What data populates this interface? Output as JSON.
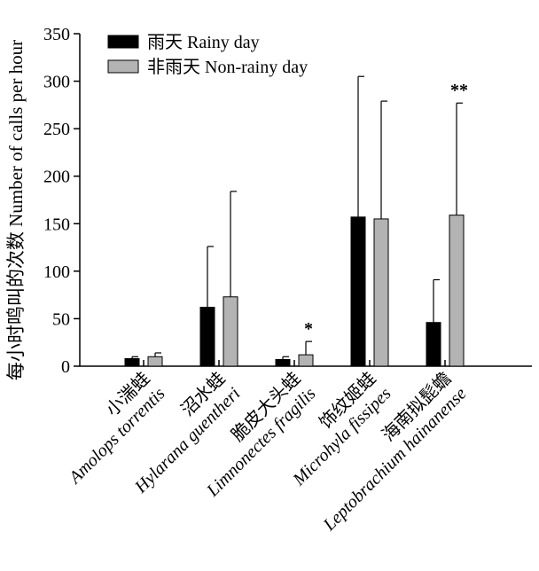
{
  "chart_data": {
    "type": "bar",
    "ylabel": "每小时鸣叫的次数 Number of calls per hour",
    "ylim": [
      0,
      350
    ],
    "yticks": [
      0,
      50,
      100,
      150,
      200,
      250,
      300,
      350
    ],
    "categories": [
      {
        "cn": "小湍蛙",
        "latin": "Amolops torrentis"
      },
      {
        "cn": "沼水蛙",
        "latin": "Hylarana guentheri"
      },
      {
        "cn": "脆皮大头蛙",
        "latin": "Limnonectes fragilis"
      },
      {
        "cn": "饰纹姬蛙",
        "latin": "Microhyla fissipes"
      },
      {
        "cn": "海南拟髭蟾",
        "latin": "Leptobrachium hainanense"
      }
    ],
    "series": [
      {
        "name": "雨天 Rainy day",
        "color": "#000000",
        "values": [
          8,
          62,
          7,
          157,
          46
        ],
        "errors": [
          2,
          64,
          3,
          148,
          45
        ]
      },
      {
        "name": "非雨天 Non-rainy day",
        "color": "#b3b3b3",
        "values": [
          10,
          73,
          12,
          155,
          159
        ],
        "errors": [
          4,
          111,
          14,
          124,
          118
        ]
      }
    ],
    "significance": [
      "",
      "",
      "*",
      "",
      "**"
    ],
    "legend": "top-left"
  }
}
